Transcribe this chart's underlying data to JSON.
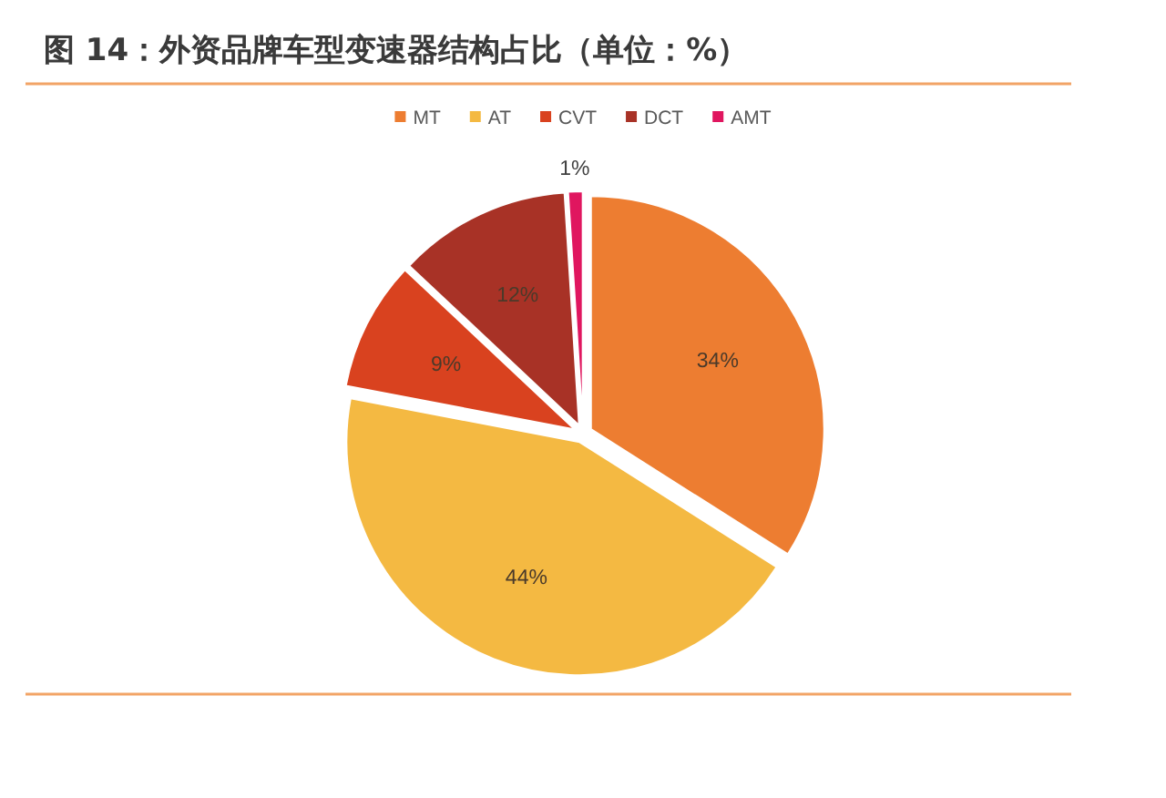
{
  "chart_data": {
    "type": "pie",
    "title": "图 14：外资品牌车型变速器结构占比（单位：%）",
    "categories": [
      "MT",
      "AT",
      "CVT",
      "DCT",
      "AMT"
    ],
    "values": [
      34,
      44,
      9,
      12,
      1
    ],
    "colors": [
      "#ed7d31",
      "#f4b942",
      "#d9421f",
      "#a83226",
      "#e0165f"
    ],
    "value_labels": [
      "34%",
      "44%",
      "9%",
      "12%",
      "1%"
    ],
    "legend": "top"
  }
}
